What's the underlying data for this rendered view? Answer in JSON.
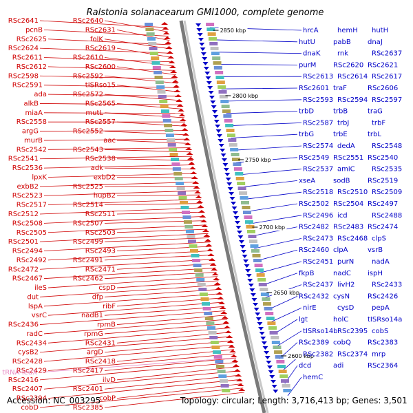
{
  "title": "Ralstonia solanacearum GMI1000, complete genome",
  "footer": {
    "accession": "Accession: NC_003295",
    "summary": "Topology: circular; Length: 3,716,413 bp; Genes: 3,501"
  },
  "ticks": [
    "2850 kbp",
    "2800 kbp",
    "2750 kbp",
    "2700 kbp",
    "2650 kbp",
    "2600 kbp"
  ],
  "colors": {
    "forward": "#d00000",
    "reverse": "#0000c8",
    "rna": "#e78ac3",
    "backbone": "#808080"
  },
  "forward_labels": [
    "RSc2641",
    "RSc2640",
    "pcnB",
    "RSc2631",
    "RSc2625",
    "folK",
    "RSc2624",
    "RSc2619",
    "RSc2611",
    "RSc2610",
    "RSc2612",
    "RSc2600",
    "RSc2598",
    "RSc2592",
    "RSc2591",
    "tISRso15",
    "ada",
    "RSc2572",
    "alkB",
    "RSc2565",
    "miaA",
    "mutL",
    "RSc2558",
    "RSc2557",
    "argG",
    "RSc2552",
    "murB",
    "aac",
    "RSc2542",
    "RSc2543",
    "RSc2541",
    "RSc2538",
    "RSc2536",
    "adk",
    "lpxK",
    "exbD2",
    "exbB2",
    "RSc2525",
    "RSc2523",
    "hupB2",
    "RSc2517",
    "RSc2514",
    "RSc2512",
    "RSc2511",
    "RSc2508",
    "RSc2507",
    "RSc2505",
    "RSc2503",
    "RSc2501",
    "RSc2499",
    "RSc2494",
    "RSc2493",
    "RSc2492",
    "RSc2491",
    "RSc2472",
    "RSc2471",
    "RSc2467",
    "RSc2462",
    "ileS",
    "cspD",
    "dut",
    "dfp",
    "lspA",
    "ribF",
    "vsrC",
    "nadB1",
    "RSc2436",
    "rpmB",
    "radC",
    "rpmG",
    "RSc2434",
    "RSc2431",
    "cysB2",
    "argD",
    "RSc2428",
    "RSc2418",
    "RSc2429",
    "RSc2417",
    "RSc2416",
    "ilvD",
    "RSc2407",
    "RSc2401",
    "RSc2394",
    "cobP",
    "cobD",
    "RSc2385"
  ],
  "reverse_labels": [
    "hrcA",
    "hemH",
    "hutH",
    "hutU",
    "pabB",
    "dnaJ",
    "dnaK",
    "rnk",
    "RSc2637",
    "purM",
    "RSc2620",
    "RSc2621",
    "RSc2613",
    "RSc2614",
    "RSc2617",
    "RSc2601",
    "traF",
    "RSc2606",
    "RSc2593",
    "RSc2594",
    "RSc2597",
    "trbD",
    "trbB",
    "traG",
    "RSc2587",
    "trbJ",
    "trbF",
    "trbG",
    "trbE",
    "trbL",
    "RSc2574",
    "dedA",
    "RSc2548",
    "RSc2549",
    "RSc2551",
    "RSc2540",
    "RSc2537",
    "amiC",
    "RSc2535",
    "xseA",
    "sodB",
    "RSc2519",
    "RSc2518",
    "RSc2510",
    "RSc2509",
    "RSc2502",
    "RSc2504",
    "RSc2497",
    "RSc2496",
    "icd",
    "RSc2488",
    "RSc2482",
    "RSc2483",
    "RSc2474",
    "RSc2473",
    "RSc2468",
    "clpS",
    "RSc2460",
    "clpA",
    "vsrB",
    "RSc2451",
    "purN",
    "nadA",
    "fkpB",
    "nadC",
    "ispH",
    "RSc2437",
    "livH2",
    "RSc2433",
    "RSc2432",
    "cysN",
    "RSc2426",
    "nirE",
    "cysD",
    "pepA",
    "lgt",
    "holC",
    "tISRso14a",
    "tISRso14b",
    "RSc2395",
    "cobS",
    "RSc2389",
    "cobQ",
    "RSc2383",
    "RSc2382",
    "RSc2374",
    "mrp",
    "dcd",
    "adi",
    "RSc2364",
    "hemC"
  ],
  "rna_labels": [
    "tRNA-leuX"
  ]
}
